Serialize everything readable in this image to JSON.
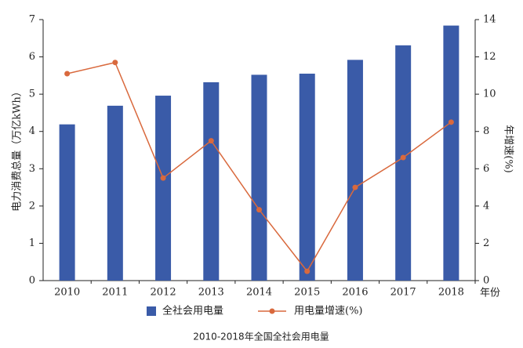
{
  "chart_data": {
    "type": "bar",
    "caption": "2010-2018年全国全社会用电量",
    "y_label": "电力消费总量（万亿kWh）",
    "y2_label": "年增速(%)",
    "x_label": "年份",
    "categories": [
      "2010",
      "2011",
      "2012",
      "2013",
      "2014",
      "2015",
      "2016",
      "2017",
      "2018"
    ],
    "series": [
      {
        "name": "全社会用电量",
        "type": "bar",
        "color": "#3a5ba8",
        "values": [
          4.19,
          4.69,
          4.96,
          5.32,
          5.52,
          5.55,
          5.92,
          6.31,
          6.84
        ]
      },
      {
        "name": "用电量增速(%)",
        "type": "line",
        "axis": "y2",
        "color": "#d9693d",
        "values": [
          11.1,
          11.7,
          5.5,
          7.5,
          3.8,
          0.5,
          5.0,
          6.6,
          8.5
        ]
      }
    ],
    "ylim": [
      0,
      7
    ],
    "yticks": [
      0,
      1,
      2,
      3,
      4,
      5,
      6,
      7
    ],
    "y2lim": [
      0,
      14
    ],
    "y2ticks": [
      0,
      2,
      4,
      6,
      8,
      10,
      12,
      14
    ],
    "grid": false
  }
}
